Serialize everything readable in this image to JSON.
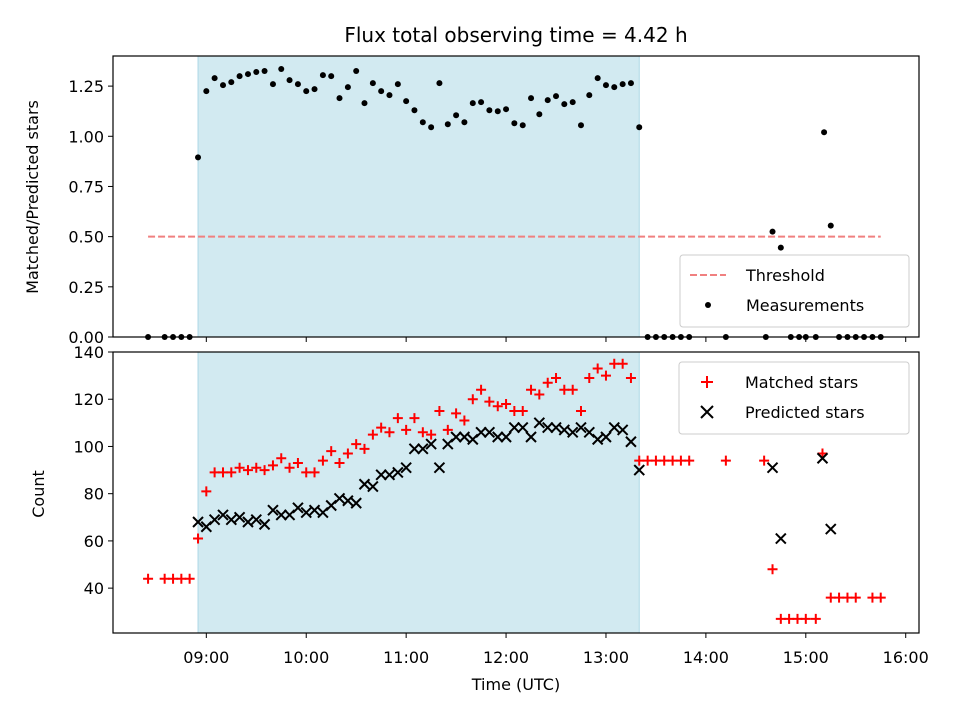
{
  "chart_data": {
    "title": "Flux total observing time = 4.42 h",
    "xlabel": "Time (UTC)",
    "x_unit": "hours UTC",
    "xlim": [
      8.066,
      16.133
    ],
    "x_ticks": [
      {
        "value": 9,
        "label": "09:00"
      },
      {
        "value": 10,
        "label": "10:00"
      },
      {
        "value": 11,
        "label": "11:00"
      },
      {
        "value": 12,
        "label": "12:00"
      },
      {
        "value": 13,
        "label": "13:00"
      },
      {
        "value": 14,
        "label": "14:00"
      },
      {
        "value": 15,
        "label": "15:00"
      },
      {
        "value": 16,
        "label": "16:00"
      }
    ],
    "observing_window": {
      "start": 8.917,
      "end": 13.333,
      "color": "#add8e6"
    },
    "panels": [
      {
        "type": "scatter",
        "ylabel": "Matched/Predicted stars",
        "ylim": [
          0,
          1.4
        ],
        "y_ticks": [
          "0.00",
          "0.25",
          "0.50",
          "0.75",
          "1.00",
          "1.25"
        ],
        "threshold": {
          "name": "Threshold",
          "value": 0.5,
          "x_range": [
            8.417,
            15.75
          ],
          "color": "#f08080"
        },
        "legend_position": "lower right",
        "series": [
          {
            "name": "Measurements",
            "color": "#000000",
            "marker": "dot",
            "points": [
              [
                8.417,
                0
              ],
              [
                8.583,
                0
              ],
              [
                8.667,
                0
              ],
              [
                8.75,
                0
              ],
              [
                8.833,
                0
              ],
              [
                8.917,
                0.895
              ],
              [
                9.0,
                1.225
              ],
              [
                9.083,
                1.29
              ],
              [
                9.167,
                1.255
              ],
              [
                9.25,
                1.27
              ],
              [
                9.333,
                1.3
              ],
              [
                9.417,
                1.31
              ],
              [
                9.5,
                1.32
              ],
              [
                9.583,
                1.325
              ],
              [
                9.667,
                1.26
              ],
              [
                9.75,
                1.335
              ],
              [
                9.833,
                1.28
              ],
              [
                9.917,
                1.26
              ],
              [
                10.0,
                1.225
              ],
              [
                10.083,
                1.235
              ],
              [
                10.167,
                1.305
              ],
              [
                10.25,
                1.3
              ],
              [
                10.333,
                1.19
              ],
              [
                10.417,
                1.245
              ],
              [
                10.5,
                1.325
              ],
              [
                10.583,
                1.165
              ],
              [
                10.667,
                1.265
              ],
              [
                10.75,
                1.225
              ],
              [
                10.833,
                1.205
              ],
              [
                10.917,
                1.26
              ],
              [
                11.0,
                1.175
              ],
              [
                11.083,
                1.13
              ],
              [
                11.167,
                1.07
              ],
              [
                11.25,
                1.045
              ],
              [
                11.333,
                1.265
              ],
              [
                11.417,
                1.06
              ],
              [
                11.5,
                1.105
              ],
              [
                11.583,
                1.07
              ],
              [
                11.667,
                1.165
              ],
              [
                11.75,
                1.17
              ],
              [
                11.833,
                1.13
              ],
              [
                11.917,
                1.125
              ],
              [
                12.0,
                1.135
              ],
              [
                12.083,
                1.065
              ],
              [
                12.167,
                1.055
              ],
              [
                12.25,
                1.19
              ],
              [
                12.333,
                1.11
              ],
              [
                12.417,
                1.18
              ],
              [
                12.5,
                1.2
              ],
              [
                12.583,
                1.16
              ],
              [
                12.667,
                1.17
              ],
              [
                12.75,
                1.055
              ],
              [
                12.833,
                1.205
              ],
              [
                12.917,
                1.29
              ],
              [
                13.0,
                1.255
              ],
              [
                13.083,
                1.245
              ],
              [
                13.167,
                1.26
              ],
              [
                13.25,
                1.265
              ],
              [
                13.333,
                1.045
              ],
              [
                13.417,
                0
              ],
              [
                13.5,
                0
              ],
              [
                13.583,
                0
              ],
              [
                13.667,
                0
              ],
              [
                13.75,
                0
              ],
              [
                13.833,
                0
              ],
              [
                14.2,
                0
              ],
              [
                14.6,
                0
              ],
              [
                14.667,
                0.525
              ],
              [
                14.75,
                0.445
              ],
              [
                14.85,
                0
              ],
              [
                14.933,
                0
              ],
              [
                15.0,
                0
              ],
              [
                15.1,
                0
              ],
              [
                15.183,
                1.02
              ],
              [
                15.25,
                0.555
              ],
              [
                15.333,
                0
              ],
              [
                15.417,
                0
              ],
              [
                15.5,
                0
              ],
              [
                15.583,
                0
              ],
              [
                15.667,
                0
              ],
              [
                15.75,
                0
              ]
            ]
          }
        ]
      },
      {
        "type": "scatter",
        "ylabel": "Count",
        "ylim": [
          21,
          140
        ],
        "y_ticks": [
          "40",
          "60",
          "80",
          "100",
          "120",
          "140"
        ],
        "legend_position": "upper right",
        "series": [
          {
            "name": "Matched stars",
            "color": "#ff0000",
            "marker": "plus",
            "points": [
              [
                8.417,
                44
              ],
              [
                8.583,
                44
              ],
              [
                8.667,
                44
              ],
              [
                8.75,
                44
              ],
              [
                8.833,
                44
              ],
              [
                8.917,
                61
              ],
              [
                9.0,
                81
              ],
              [
                9.083,
                89
              ],
              [
                9.167,
                89
              ],
              [
                9.25,
                89
              ],
              [
                9.333,
                91
              ],
              [
                9.417,
                90
              ],
              [
                9.5,
                91
              ],
              [
                9.583,
                90
              ],
              [
                9.667,
                92
              ],
              [
                9.75,
                95
              ],
              [
                9.833,
                91
              ],
              [
                9.917,
                93
              ],
              [
                10.0,
                89
              ],
              [
                10.083,
                89
              ],
              [
                10.167,
                94
              ],
              [
                10.25,
                98
              ],
              [
                10.333,
                93
              ],
              [
                10.417,
                97
              ],
              [
                10.5,
                101
              ],
              [
                10.583,
                99
              ],
              [
                10.667,
                105
              ],
              [
                10.75,
                108
              ],
              [
                10.833,
                106
              ],
              [
                10.917,
                112
              ],
              [
                11.0,
                107
              ],
              [
                11.083,
                112
              ],
              [
                11.167,
                106
              ],
              [
                11.25,
                105
              ],
              [
                11.333,
                115
              ],
              [
                11.417,
                107
              ],
              [
                11.5,
                114
              ],
              [
                11.583,
                111
              ],
              [
                11.667,
                120
              ],
              [
                11.75,
                124
              ],
              [
                11.833,
                119
              ],
              [
                11.917,
                117
              ],
              [
                12.0,
                118
              ],
              [
                12.083,
                115
              ],
              [
                12.167,
                115
              ],
              [
                12.25,
                124
              ],
              [
                12.333,
                122
              ],
              [
                12.417,
                127
              ],
              [
                12.5,
                129
              ],
              [
                12.583,
                124
              ],
              [
                12.667,
                124
              ],
              [
                12.75,
                115
              ],
              [
                12.833,
                129
              ],
              [
                12.917,
                133
              ],
              [
                13.0,
                130
              ],
              [
                13.083,
                135
              ],
              [
                13.167,
                135
              ],
              [
                13.25,
                129
              ],
              [
                13.333,
                94
              ],
              [
                13.417,
                94
              ],
              [
                13.5,
                94
              ],
              [
                13.583,
                94
              ],
              [
                13.667,
                94
              ],
              [
                13.75,
                94
              ],
              [
                13.833,
                94
              ],
              [
                14.2,
                94
              ],
              [
                14.583,
                94
              ],
              [
                14.667,
                48
              ],
              [
                14.75,
                27
              ],
              [
                14.833,
                27
              ],
              [
                14.917,
                27
              ],
              [
                15.0,
                27
              ],
              [
                15.1,
                27
              ],
              [
                15.167,
                97
              ],
              [
                15.25,
                36
              ],
              [
                15.333,
                36
              ],
              [
                15.417,
                36
              ],
              [
                15.5,
                36
              ],
              [
                15.667,
                36
              ],
              [
                15.75,
                36
              ]
            ]
          },
          {
            "name": "Predicted stars",
            "color": "#000000",
            "marker": "x",
            "points": [
              [
                8.917,
                68
              ],
              [
                9.0,
                66
              ],
              [
                9.083,
                69
              ],
              [
                9.167,
                71
              ],
              [
                9.25,
                69
              ],
              [
                9.333,
                70
              ],
              [
                9.417,
                68
              ],
              [
                9.5,
                69
              ],
              [
                9.583,
                67
              ],
              [
                9.667,
                73
              ],
              [
                9.75,
                71
              ],
              [
                9.833,
                71
              ],
              [
                9.917,
                74
              ],
              [
                10.0,
                72
              ],
              [
                10.083,
                73
              ],
              [
                10.167,
                72
              ],
              [
                10.25,
                75
              ],
              [
                10.333,
                78
              ],
              [
                10.417,
                77
              ],
              [
                10.5,
                76
              ],
              [
                10.583,
                84
              ],
              [
                10.667,
                83
              ],
              [
                10.75,
                88
              ],
              [
                10.833,
                88
              ],
              [
                10.917,
                89
              ],
              [
                11.0,
                91
              ],
              [
                11.083,
                99
              ],
              [
                11.167,
                99
              ],
              [
                11.25,
                101
              ],
              [
                11.333,
                91
              ],
              [
                11.417,
                101
              ],
              [
                11.5,
                104
              ],
              [
                11.583,
                104
              ],
              [
                11.667,
                103
              ],
              [
                11.75,
                106
              ],
              [
                11.833,
                106
              ],
              [
                11.917,
                104
              ],
              [
                12.0,
                104
              ],
              [
                12.083,
                108
              ],
              [
                12.167,
                108
              ],
              [
                12.25,
                104
              ],
              [
                12.333,
                110
              ],
              [
                12.417,
                108
              ],
              [
                12.5,
                108
              ],
              [
                12.583,
                107
              ],
              [
                12.667,
                106
              ],
              [
                12.75,
                108
              ],
              [
                12.833,
                106
              ],
              [
                12.917,
                103
              ],
              [
                13.0,
                104
              ],
              [
                13.083,
                108
              ],
              [
                13.167,
                107
              ],
              [
                13.25,
                102
              ],
              [
                13.333,
                90
              ],
              [
                14.667,
                91
              ],
              [
                14.75,
                61
              ],
              [
                15.167,
                95
              ],
              [
                15.25,
                65
              ]
            ]
          }
        ]
      }
    ]
  }
}
